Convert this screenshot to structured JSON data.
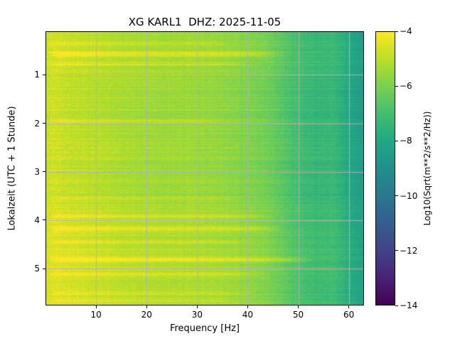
{
  "chart_data": {
    "type": "heatmap",
    "title": "XG KARL1  DHZ: 2025-11-05",
    "xlabel": "Frequency [Hz]",
    "ylabel": "Lokalzeit (UTC + 1 Stunde)",
    "xlim": [
      0,
      63
    ],
    "ylim": [
      0.1,
      5.76
    ],
    "x_ticks": [
      10,
      20,
      30,
      40,
      50,
      60
    ],
    "y_ticks": [
      1,
      2,
      3,
      4,
      5
    ],
    "grid": true,
    "colorbar": {
      "label": "Log10(Sqrt(m**2/s**2/Hz))",
      "ticks": [
        -4,
        -6,
        -8,
        -10,
        -12,
        -14
      ],
      "vmin": -14,
      "vmax": -4,
      "colormap": "viridis"
    },
    "freq_bins": [
      0,
      2,
      5,
      10,
      15,
      20,
      25,
      30,
      35,
      40,
      44,
      48,
      51,
      54,
      57,
      60,
      63
    ],
    "time_bins": [
      0.1,
      0.6,
      1.1,
      1.6,
      2.1,
      2.6,
      3.1,
      3.6,
      4.1,
      4.6,
      5.1,
      5.76
    ],
    "values": [
      [
        -4.8,
        -4.6,
        -4.8,
        -5.0,
        -5.2,
        -5.3,
        -5.4,
        -5.4,
        -5.5,
        -5.8,
        -6.1,
        -6.7,
        -7.1,
        -7.3,
        -7.2,
        -7.9,
        -8.5
      ],
      [
        -4.7,
        -4.5,
        -4.7,
        -4.9,
        -5.1,
        -5.2,
        -5.3,
        -5.3,
        -5.4,
        -5.7,
        -6.0,
        -6.6,
        -7.0,
        -7.2,
        -7.1,
        -7.8,
        -8.4
      ],
      [
        -4.8,
        -4.7,
        -4.9,
        -5.1,
        -5.2,
        -5.3,
        -5.4,
        -5.5,
        -5.6,
        -5.9,
        -6.2,
        -6.8,
        -7.1,
        -7.3,
        -7.3,
        -7.9,
        -8.5
      ],
      [
        -4.9,
        -4.7,
        -4.9,
        -5.1,
        -5.3,
        -5.4,
        -5.5,
        -5.5,
        -5.6,
        -5.9,
        -6.2,
        -6.8,
        -7.2,
        -7.4,
        -7.3,
        -8.0,
        -8.6
      ],
      [
        -4.9,
        -4.7,
        -4.9,
        -5.1,
        -5.3,
        -5.4,
        -5.5,
        -5.5,
        -5.6,
        -5.9,
        -6.2,
        -6.8,
        -7.2,
        -7.4,
        -7.3,
        -8.0,
        -8.6
      ],
      [
        -4.8,
        -4.7,
        -4.9,
        -5.0,
        -5.2,
        -5.4,
        -5.4,
        -5.5,
        -5.6,
        -5.9,
        -6.2,
        -6.7,
        -7.1,
        -7.3,
        -7.3,
        -7.9,
        -8.5
      ],
      [
        -4.9,
        -4.7,
        -4.9,
        -5.1,
        -5.3,
        -5.4,
        -5.5,
        -5.5,
        -5.6,
        -5.9,
        -6.2,
        -6.8,
        -7.2,
        -7.4,
        -7.3,
        -8.0,
        -8.6
      ],
      [
        -4.8,
        -4.6,
        -4.8,
        -5.0,
        -5.2,
        -5.3,
        -5.4,
        -5.4,
        -5.5,
        -5.8,
        -6.1,
        -6.7,
        -7.1,
        -7.3,
        -7.2,
        -7.9,
        -8.5
      ],
      [
        -4.7,
        -4.5,
        -4.7,
        -4.9,
        -5.1,
        -5.2,
        -5.3,
        -5.3,
        -5.4,
        -5.7,
        -6.0,
        -6.6,
        -7.0,
        -7.2,
        -7.1,
        -7.8,
        -8.4
      ],
      [
        -4.7,
        -4.5,
        -4.6,
        -4.8,
        -5.0,
        -5.1,
        -5.2,
        -5.3,
        -5.4,
        -5.6,
        -5.9,
        -6.5,
        -6.9,
        -7.1,
        -7.1,
        -7.7,
        -8.3
      ],
      [
        -4.6,
        -4.4,
        -4.6,
        -4.8,
        -5.0,
        -5.1,
        -5.2,
        -5.2,
        -5.3,
        -5.6,
        -5.9,
        -6.5,
        -6.9,
        -7.1,
        -7.0,
        -7.7,
        -8.3
      ],
      [
        -4.7,
        -4.5,
        -4.6,
        -4.8,
        -5.0,
        -5.1,
        -5.2,
        -5.3,
        -5.3,
        -5.6,
        -5.9,
        -6.5,
        -6.9,
        -7.1,
        -7.1,
        -7.7,
        -8.3
      ]
    ],
    "streaks": [
      {
        "time": 0.35,
        "width": 0.03,
        "boost": 0.4,
        "fmax": 35
      },
      {
        "time": 0.57,
        "width": 0.05,
        "boost": 0.9,
        "fmax": 46
      },
      {
        "time": 0.78,
        "width": 0.03,
        "boost": 0.5,
        "fmax": 40
      },
      {
        "time": 1.95,
        "width": 0.03,
        "boost": 0.4,
        "fmax": 35
      },
      {
        "time": 3.55,
        "width": 0.03,
        "boost": 0.4,
        "fmax": 38
      },
      {
        "time": 3.92,
        "width": 0.04,
        "boost": 0.7,
        "fmax": 44
      },
      {
        "time": 4.17,
        "width": 0.05,
        "boost": 0.8,
        "fmax": 46
      },
      {
        "time": 4.45,
        "width": 0.03,
        "boost": 0.5,
        "fmax": 40
      },
      {
        "time": 4.82,
        "width": 0.05,
        "boost": 1.0,
        "fmax": 52
      },
      {
        "time": 5.12,
        "width": 0.04,
        "boost": 0.6,
        "fmax": 42
      },
      {
        "time": 5.5,
        "width": 0.04,
        "boost": 0.5,
        "fmax": 40
      },
      {
        "time": 5.65,
        "width": 0.03,
        "boost": 0.5,
        "fmax": 38
      }
    ]
  }
}
